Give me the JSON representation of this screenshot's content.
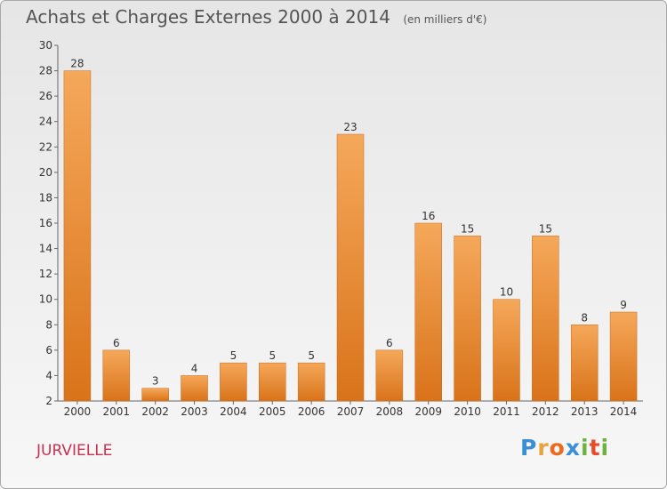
{
  "title": "Achats et Charges Externes 2000 à 2014",
  "subtitle": "(en milliers d'€)",
  "commune": "JURVIELLE",
  "logo": {
    "letters": [
      "P",
      "r",
      "o",
      "x",
      "i",
      "t",
      "i"
    ],
    "colors": [
      "#3b8fd6",
      "#e8a43a",
      "#ef6a1d",
      "#3b8fd6",
      "#6cb33e",
      "#e94a2a",
      "#6cb33e"
    ]
  },
  "colors": {
    "bar": "#ef8f3a",
    "bar_light": "#f5a85a",
    "bar_dark": "#d9731a",
    "axis": "#666666",
    "commune": "#c8314f"
  },
  "chart_data": {
    "type": "bar",
    "categories": [
      "2000",
      "2001",
      "2002",
      "2003",
      "2004",
      "2005",
      "2006",
      "2007",
      "2008",
      "2009",
      "2010",
      "2011",
      "2012",
      "2013",
      "2014"
    ],
    "values": [
      28,
      6,
      3,
      4,
      5,
      5,
      5,
      23,
      6,
      16,
      15,
      10,
      15,
      8,
      9
    ],
    "ylim": [
      2,
      30
    ],
    "yticks": [
      2,
      4,
      6,
      8,
      10,
      12,
      14,
      16,
      18,
      20,
      22,
      24,
      26,
      28,
      30
    ],
    "grid": false,
    "title": "Achats et Charges Externes 2000 à 2014",
    "subtitle": "(en milliers d'€)"
  }
}
